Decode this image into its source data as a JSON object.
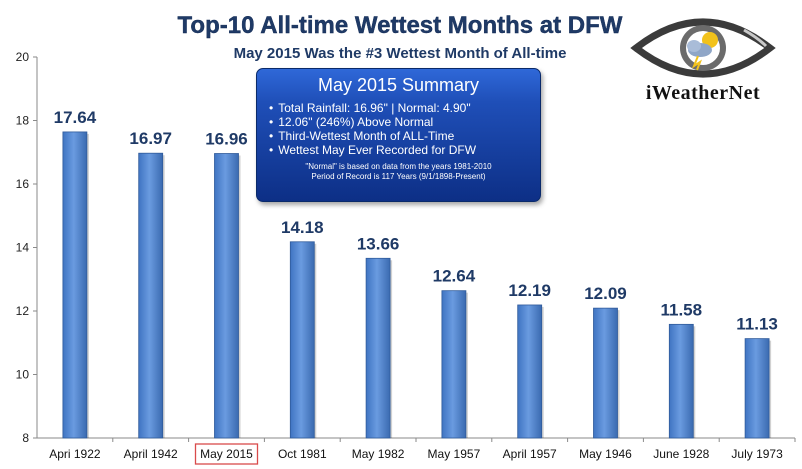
{
  "header": {
    "title": "Top-10 All-time Wettest Months at DFW",
    "subtitle": "May 2015 Was the #3 Wettest Month of All-time"
  },
  "summary": {
    "title": "May 2015 Summary",
    "items": [
      "Total Rainfall: 16.96\"  |  Normal: 4.90\"",
      "12.06\" (246%) Above Normal",
      "Third-Wettest Month of ALL-Time",
      "Wettest May Ever Recorded for DFW"
    ],
    "note_1": "\"Normal\" is based on data from the years 1981-2010",
    "note_2": "Period of Record is 117 Years (9/1/1898-Present)"
  },
  "logo": {
    "text": "iWeatherNet",
    "icon": "eye-weather-logo-icon"
  },
  "colors": {
    "bar": "#5b8fd6",
    "bar_dark": "#3a6fb8",
    "title": "#1f3a66",
    "highlight_box": "#d94b4b"
  },
  "highlighted_category": "May 2015",
  "chart_data": {
    "type": "bar",
    "title": "Top-10 All-time Wettest Months at DFW",
    "subtitle": "May 2015 Was the #3 Wettest Month of All-time",
    "xlabel": "",
    "ylabel": "",
    "categories": [
      "Apri 1922",
      "April 1942",
      "May 2015",
      "Oct 1981",
      "May 1982",
      "May 1957",
      "April 1957",
      "May 1946",
      "June 1928",
      "July 1973"
    ],
    "values": [
      17.64,
      16.97,
      16.96,
      14.18,
      13.66,
      12.64,
      12.19,
      12.09,
      11.58,
      11.13
    ],
    "data_labels": [
      "17.64",
      "16.97",
      "16.96",
      "14.18",
      "13.66",
      "12.64",
      "12.19",
      "12.09",
      "11.58",
      "11.13"
    ],
    "ylim": [
      8,
      20
    ],
    "yticks": [
      8,
      10,
      12,
      14,
      16,
      18,
      20
    ],
    "grid": false,
    "legend": "none"
  }
}
